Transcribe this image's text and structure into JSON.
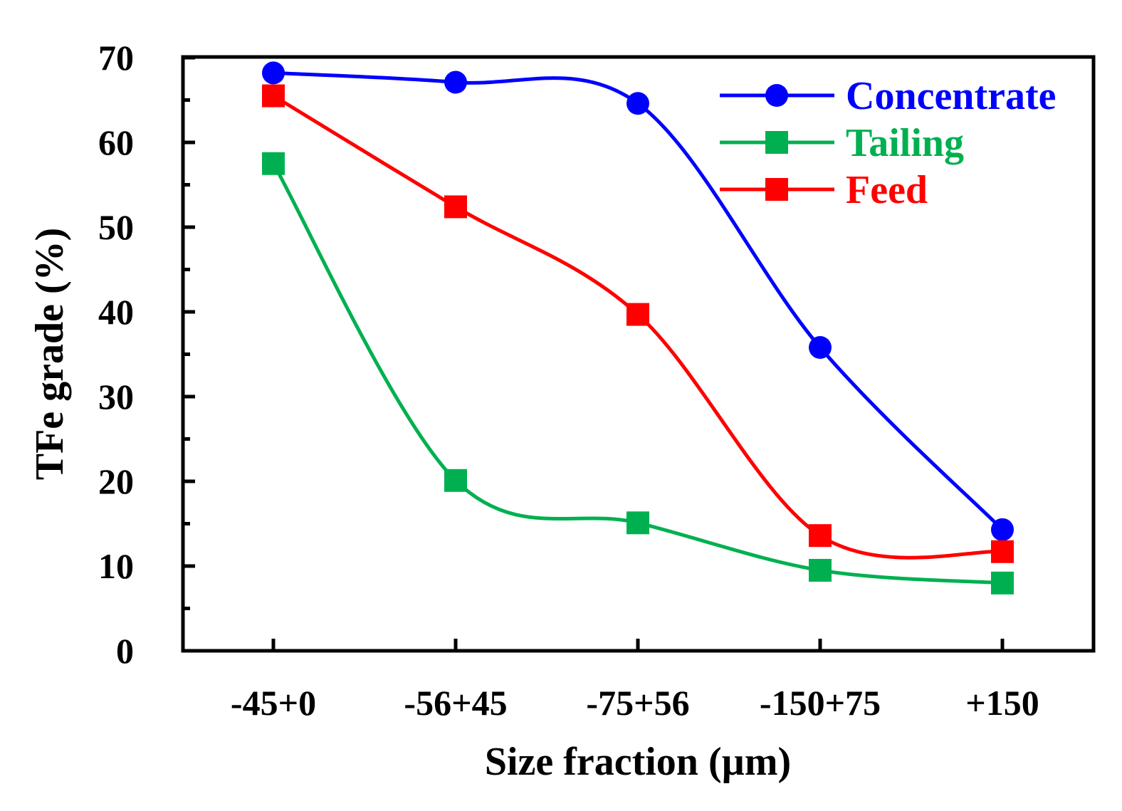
{
  "chart_data": {
    "type": "line",
    "title": "",
    "xlabel": "Size fraction (µm)",
    "ylabel": "TFe grade (%)",
    "categories": [
      "-45+0",
      "-56+45",
      "-75+56",
      "-150+75",
      "+150"
    ],
    "ylim": [
      0,
      70
    ],
    "yticks": [
      "0",
      "10",
      "20",
      "30",
      "40",
      "50",
      "60",
      "70"
    ],
    "grid": false,
    "smooth": true,
    "legend_position": "top-right",
    "series": [
      {
        "name": "Concentrate",
        "color": "#0000ff",
        "marker": "circle",
        "values": [
          68.2,
          67.1,
          64.6,
          35.8,
          14.3
        ]
      },
      {
        "name": "Tailing",
        "color": "#00b050",
        "marker": "square",
        "values": [
          57.5,
          20.1,
          15.1,
          9.5,
          8.0
        ]
      },
      {
        "name": "Feed",
        "color": "#ff0000",
        "marker": "square",
        "values": [
          65.5,
          52.4,
          39.7,
          13.6,
          11.7
        ]
      }
    ]
  }
}
